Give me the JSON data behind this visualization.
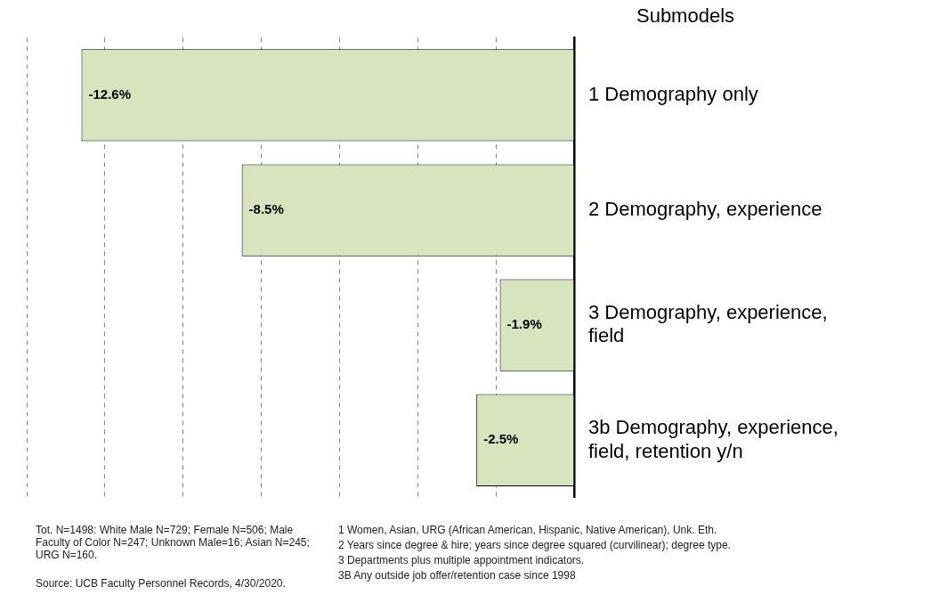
{
  "chart_data": {
    "type": "bar",
    "orientation": "horizontal",
    "legend_title": "Submodels",
    "categories": [
      "1 Demography only",
      "2 Demography, experience",
      "3 Demography, experience, field",
      "3b Demography, experience, field, retention y/n"
    ],
    "values": [
      -12.6,
      -8.5,
      -1.9,
      -2.5
    ],
    "color": "#d7e4bd",
    "value_labels": [
      "-12.6%",
      "-8.5%",
      "-1.9%",
      "-2.5%"
    ],
    "grid": "x",
    "tick_labels": "y",
    "annotations": [
      "Tot. N=1498: White Male N=729; Female N=506; Male Faculty of Color N=247; Unknown Male=16; Asian N=245; URG N=160.",
      "Source: UCB Faculty Personnel Records, 4/30/2020.",
      "1  Women, Asian, URG (African American, Hispanic, Native American), Unk. Eth.",
      "2  Years since degree & hire;  years since degree squared (curvilinear); degree type.",
      "3  Departments plus multiple appointment indicators.",
      "3B  Any outside job offer/retention case since 1998"
    ]
  }
}
